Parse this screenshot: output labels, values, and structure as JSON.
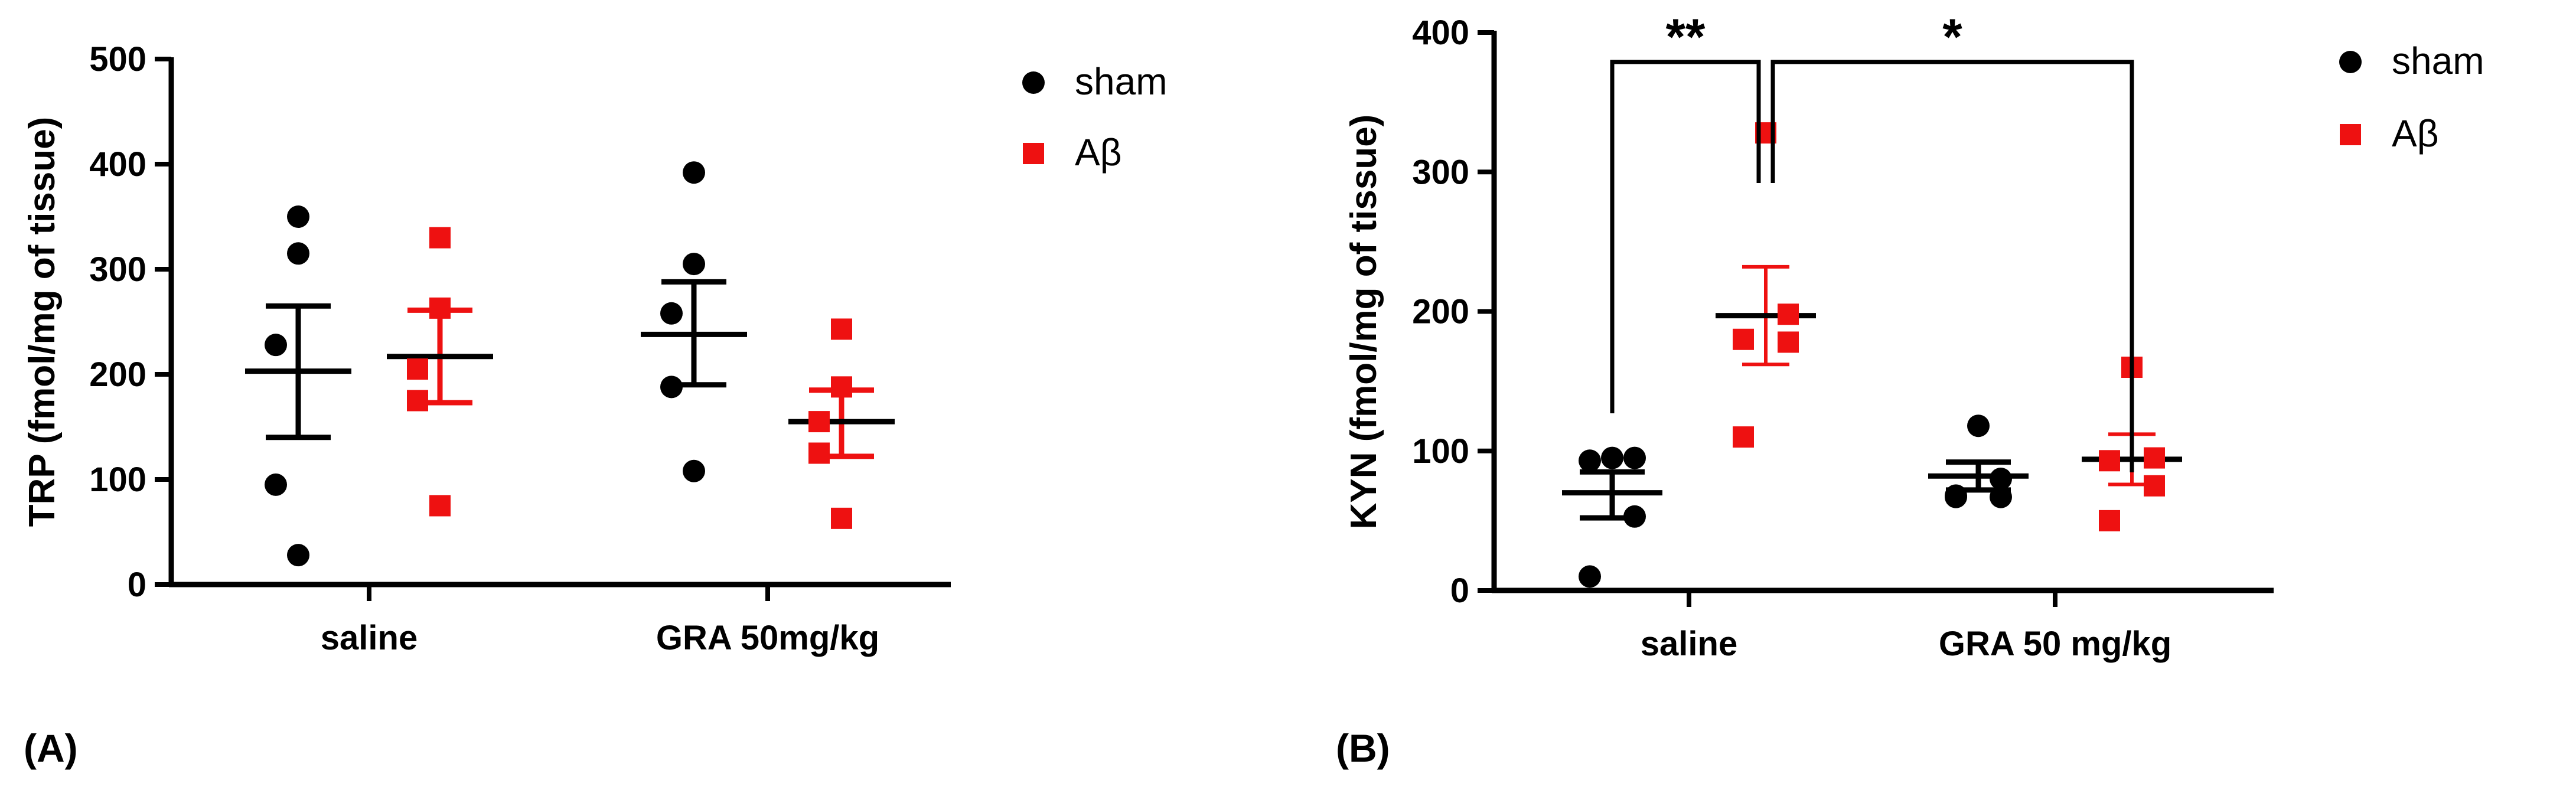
{
  "colors": {
    "sham": "#000000",
    "abeta": "#ee1111"
  },
  "chart_data": [
    {
      "type": "scatter",
      "panel_label": "(A)",
      "ylabel": "TRP (fmol/mg of tissue)",
      "ylim": [
        0,
        500
      ],
      "yticks": [
        0,
        100,
        200,
        300,
        400,
        500
      ],
      "categories": [
        "saline",
        "GRA 50mg/kg"
      ],
      "legend": [
        "sham",
        "Aβ"
      ],
      "legend_placement": "right",
      "groups": [
        {
          "category": "saline",
          "series": "sham",
          "points": [
            350,
            315,
            228,
            95,
            28
          ],
          "mean": 203,
          "sem_low": 140,
          "sem_high": 265
        },
        {
          "category": "saline",
          "series": "Aβ",
          "points": [
            330,
            263,
            205,
            175,
            75
          ],
          "mean": 217,
          "sem_low": 173,
          "sem_high": 261
        },
        {
          "category": "GRA 50mg/kg",
          "series": "sham",
          "points": [
            392,
            305,
            258,
            188,
            108
          ],
          "mean": 238,
          "sem_low": 190,
          "sem_high": 288
        },
        {
          "category": "GRA 50mg/kg",
          "series": "Aβ",
          "points": [
            243,
            188,
            155,
            125,
            63
          ],
          "mean": 155,
          "sem_low": 122,
          "sem_high": 185
        }
      ]
    },
    {
      "type": "scatter",
      "panel_label": "(B)",
      "ylabel": "KYN (fmol/mg of tissue)",
      "ylim": [
        0,
        400
      ],
      "yticks": [
        0,
        100,
        200,
        300,
        400
      ],
      "categories": [
        "saline",
        "GRA 50 mg/kg"
      ],
      "legend": [
        "sham",
        "Aβ"
      ],
      "legend_placement": "right",
      "groups": [
        {
          "category": "saline",
          "series": "sham",
          "points": [
            95,
            95,
            93,
            53,
            10
          ],
          "mean": 70,
          "sem_low": 52,
          "sem_high": 85
        },
        {
          "category": "saline",
          "series": "Aβ",
          "points": [
            328,
            198,
            180,
            178,
            110
          ],
          "mean": 197,
          "sem_low": 162,
          "sem_high": 232
        },
        {
          "category": "GRA 50 mg/kg",
          "series": "sham",
          "points": [
            118,
            80,
            68,
            67,
            67
          ],
          "mean": 82,
          "sem_low": 72,
          "sem_high": 92
        },
        {
          "category": "GRA 50 mg/kg",
          "series": "Aβ",
          "points": [
            160,
            95,
            93,
            75,
            50
          ],
          "mean": 94,
          "sem_low": 76,
          "sem_high": 112
        }
      ],
      "significance": [
        {
          "from_group": 0,
          "to_group": 1,
          "label": "**"
        },
        {
          "from_group": 1,
          "to_group": 3,
          "label": "*"
        }
      ]
    }
  ]
}
